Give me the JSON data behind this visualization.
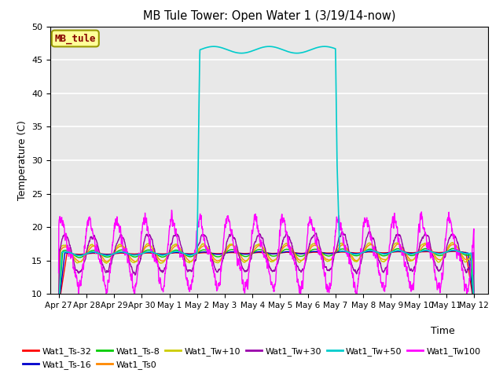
{
  "title": "MB Tule Tower: Open Water 1 (3/19/14-now)",
  "xlabel": "Time",
  "ylabel": "Temperature (C)",
  "ylim": [
    10,
    50
  ],
  "xlim": [
    -0.3,
    15.5
  ],
  "plot_bg": "#e8e8e8",
  "legend_box_label": "MB_tule",
  "legend_box_color": "#ffff99",
  "legend_box_border": "#999900",
  "series_colors": {
    "Wat1_Ts-32": "#ff0000",
    "Wat1_Ts-16": "#0000cc",
    "Wat1_Ts-8": "#00cc00",
    "Wat1_Ts0": "#ff8800",
    "Wat1_Tw+10": "#cccc00",
    "Wat1_Tw+30": "#9900aa",
    "Wat1_Tw+50": "#00cccc",
    "Wat1_Tw100": "#ff00ff"
  },
  "xtick_labels": [
    "Apr 27",
    "Apr 28",
    "Apr 29",
    "Apr 30",
    "May 1",
    "May 2",
    "May 3",
    "May 4",
    "May 5",
    "May 6",
    "May 7",
    "May 8",
    "May 9",
    "May 10",
    "May 11",
    "May 12"
  ],
  "xtick_positions": [
    0,
    1,
    2,
    3,
    4,
    5,
    6,
    7,
    8,
    9,
    10,
    11,
    12,
    13,
    14,
    15
  ],
  "ytick_positions": [
    10,
    15,
    20,
    25,
    30,
    35,
    40,
    45,
    50
  ]
}
